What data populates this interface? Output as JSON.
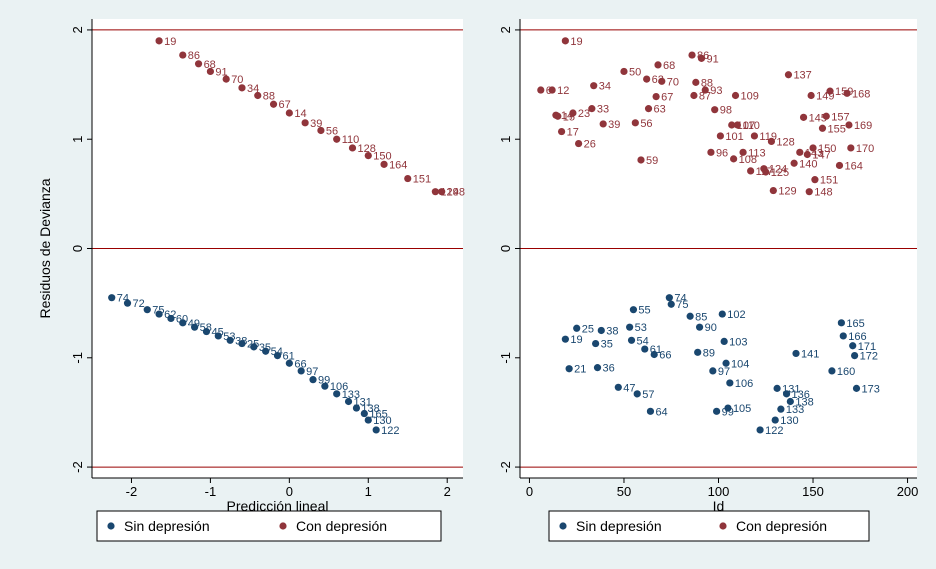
{
  "colors": {
    "sin": "#1a476f",
    "con": "#90353b",
    "refline": "#990000",
    "outer_bg": "#eaf2f3"
  },
  "chart_data": [
    {
      "type": "scatter",
      "xlabel": "Predicción lineal",
      "ylabel": "Residuos de Devianza",
      "xlim": [
        -2.5,
        2.2
      ],
      "ylim": [
        -2.1,
        2.1
      ],
      "xticks": [
        -2,
        -1,
        0,
        1,
        2
      ],
      "xtick_labels": [
        "-2",
        "-1",
        "0",
        "1",
        "2"
      ],
      "yticks": [
        -2,
        -1,
        0,
        1,
        2
      ],
      "ytick_labels": [
        "-2",
        "-1",
        "0",
        "1",
        "2"
      ],
      "ref_lines_y": [
        -2,
        0,
        2
      ],
      "grid": false,
      "legend_position": "bottom",
      "series": [
        {
          "name": "Sin depresión",
          "color_key": "sin",
          "points": [
            {
              "x": -2.25,
              "y": -0.45,
              "label": "74"
            },
            {
              "x": -2.05,
              "y": -0.5,
              "label": "72"
            },
            {
              "x": -1.8,
              "y": -0.56,
              "label": "75"
            },
            {
              "x": -1.65,
              "y": -0.6,
              "label": "62"
            },
            {
              "x": -1.5,
              "y": -0.64,
              "label": "60"
            },
            {
              "x": -1.35,
              "y": -0.68,
              "label": "49"
            },
            {
              "x": -1.2,
              "y": -0.72,
              "label": "58"
            },
            {
              "x": -1.05,
              "y": -0.76,
              "label": "45"
            },
            {
              "x": -0.9,
              "y": -0.8,
              "label": "53"
            },
            {
              "x": -0.75,
              "y": -0.84,
              "label": "38"
            },
            {
              "x": -0.6,
              "y": -0.87,
              "label": "25"
            },
            {
              "x": -0.45,
              "y": -0.9,
              "label": "35"
            },
            {
              "x": -0.3,
              "y": -0.94,
              "label": "54"
            },
            {
              "x": -0.15,
              "y": -0.98,
              "label": "61"
            },
            {
              "x": 0.0,
              "y": -1.05,
              "label": "66"
            },
            {
              "x": 0.15,
              "y": -1.12,
              "label": "97"
            },
            {
              "x": 0.3,
              "y": -1.2,
              "label": "99"
            },
            {
              "x": 0.45,
              "y": -1.26,
              "label": "106"
            },
            {
              "x": 0.6,
              "y": -1.33,
              "label": "133"
            },
            {
              "x": 0.75,
              "y": -1.4,
              "label": "131"
            },
            {
              "x": 0.85,
              "y": -1.46,
              "label": "138"
            },
            {
              "x": 0.95,
              "y": -1.51,
              "label": "165"
            },
            {
              "x": 1.0,
              "y": -1.57,
              "label": "130"
            },
            {
              "x": 1.1,
              "y": -1.66,
              "label": "122"
            }
          ]
        },
        {
          "name": "Con depresión",
          "color_key": "con",
          "points": [
            {
              "x": -1.65,
              "y": 1.9,
              "label": "19"
            },
            {
              "x": -1.35,
              "y": 1.77,
              "label": "86"
            },
            {
              "x": -1.15,
              "y": 1.69,
              "label": "68"
            },
            {
              "x": -1.0,
              "y": 1.62,
              "label": "91"
            },
            {
              "x": -0.8,
              "y": 1.55,
              "label": "70"
            },
            {
              "x": -0.6,
              "y": 1.47,
              "label": "34"
            },
            {
              "x": -0.4,
              "y": 1.4,
              "label": "88"
            },
            {
              "x": -0.2,
              "y": 1.32,
              "label": "67"
            },
            {
              "x": 0.0,
              "y": 1.24,
              "label": "14"
            },
            {
              "x": 0.2,
              "y": 1.15,
              "label": "39"
            },
            {
              "x": 0.4,
              "y": 1.08,
              "label": "56"
            },
            {
              "x": 0.6,
              "y": 1.0,
              "label": "110"
            },
            {
              "x": 0.8,
              "y": 0.92,
              "label": "128"
            },
            {
              "x": 1.0,
              "y": 0.85,
              "label": "150"
            },
            {
              "x": 1.2,
              "y": 0.77,
              "label": "164"
            },
            {
              "x": 1.5,
              "y": 0.64,
              "label": "151"
            },
            {
              "x": 1.85,
              "y": 0.52,
              "label": "129"
            },
            {
              "x": 1.93,
              "y": 0.52,
              "label": "148"
            }
          ]
        }
      ]
    },
    {
      "type": "scatter",
      "xlabel": "Id",
      "ylabel": "",
      "xlim": [
        -5,
        205
      ],
      "ylim": [
        -2.1,
        2.1
      ],
      "xticks": [
        0,
        50,
        100,
        150,
        200
      ],
      "xtick_labels": [
        "0",
        "50",
        "100",
        "150",
        "200"
      ],
      "yticks": [
        -2,
        -1,
        0,
        1,
        2
      ],
      "ytick_labels": [
        "-2",
        "-1",
        "0",
        "1",
        "2"
      ],
      "ref_lines_y": [
        -2,
        0,
        2
      ],
      "grid": false,
      "legend_position": "bottom",
      "series": [
        {
          "name": "Sin depresión",
          "color_key": "sin",
          "points": [
            {
              "x": 25,
              "y": -0.73,
              "label": "25"
            },
            {
              "x": 38,
              "y": -0.75,
              "label": "38"
            },
            {
              "x": 55,
              "y": -0.56,
              "label": "55"
            },
            {
              "x": 53,
              "y": -0.72,
              "label": "53"
            },
            {
              "x": 74,
              "y": -0.45,
              "label": "74"
            },
            {
              "x": 75,
              "y": -0.51,
              "label": "75"
            },
            {
              "x": 85,
              "y": -0.62,
              "label": "85"
            },
            {
              "x": 90,
              "y": -0.72,
              "label": "90"
            },
            {
              "x": 102,
              "y": -0.6,
              "label": "102"
            },
            {
              "x": 103,
              "y": -0.85,
              "label": "103"
            },
            {
              "x": 35,
              "y": -0.87,
              "label": "35"
            },
            {
              "x": 54,
              "y": -0.84,
              "label": "54"
            },
            {
              "x": 61,
              "y": -0.92,
              "label": "61"
            },
            {
              "x": 66,
              "y": -0.97,
              "label": "66"
            },
            {
              "x": 89,
              "y": -0.95,
              "label": "89"
            },
            {
              "x": 97,
              "y": -1.12,
              "label": "97"
            },
            {
              "x": 104,
              "y": -1.05,
              "label": "104"
            },
            {
              "x": 106,
              "y": -1.23,
              "label": "106"
            },
            {
              "x": 36,
              "y": -1.09,
              "label": "36"
            },
            {
              "x": 47,
              "y": -1.27,
              "label": "47"
            },
            {
              "x": 57,
              "y": -1.33,
              "label": "57"
            },
            {
              "x": 64,
              "y": -1.49,
              "label": "64"
            },
            {
              "x": 99,
              "y": -1.49,
              "label": "99"
            },
            {
              "x": 105,
              "y": -1.46,
              "label": "105"
            },
            {
              "x": 131,
              "y": -1.28,
              "label": "131"
            },
            {
              "x": 136,
              "y": -1.33,
              "label": "136"
            },
            {
              "x": 138,
              "y": -1.4,
              "label": "138"
            },
            {
              "x": 133,
              "y": -1.47,
              "label": "133"
            },
            {
              "x": 130,
              "y": -1.57,
              "label": "130"
            },
            {
              "x": 122,
              "y": -1.66,
              "label": "122"
            },
            {
              "x": 141,
              "y": -0.96,
              "label": "141"
            },
            {
              "x": 165,
              "y": -0.68,
              "label": "165"
            },
            {
              "x": 166,
              "y": -0.8,
              "label": "166"
            },
            {
              "x": 171,
              "y": -0.89,
              "label": "171"
            },
            {
              "x": 172,
              "y": -0.98,
              "label": "172"
            },
            {
              "x": 160,
              "y": -1.12,
              "label": "160"
            },
            {
              "x": 173,
              "y": -1.28,
              "label": "173"
            },
            {
              "x": 19,
              "y": -0.83,
              "label": "19"
            },
            {
              "x": 21,
              "y": -1.1,
              "label": "21"
            }
          ]
        },
        {
          "name": "Con depresión",
          "color_key": "con",
          "points": [
            {
              "x": 19,
              "y": 1.9,
              "label": "19"
            },
            {
              "x": 86,
              "y": 1.77,
              "label": "86"
            },
            {
              "x": 91,
              "y": 1.74,
              "label": "91"
            },
            {
              "x": 68,
              "y": 1.68,
              "label": "68"
            },
            {
              "x": 50,
              "y": 1.62,
              "label": "50"
            },
            {
              "x": 62,
              "y": 1.55,
              "label": "62"
            },
            {
              "x": 70,
              "y": 1.53,
              "label": "70"
            },
            {
              "x": 88,
              "y": 1.52,
              "label": "88"
            },
            {
              "x": 137,
              "y": 1.59,
              "label": "137"
            },
            {
              "x": 6,
              "y": 1.45,
              "label": "6"
            },
            {
              "x": 12,
              "y": 1.45,
              "label": "12"
            },
            {
              "x": 34,
              "y": 1.49,
              "label": "34"
            },
            {
              "x": 67,
              "y": 1.39,
              "label": "67"
            },
            {
              "x": 87,
              "y": 1.4,
              "label": "87"
            },
            {
              "x": 93,
              "y": 1.45,
              "label": "93"
            },
            {
              "x": 109,
              "y": 1.4,
              "label": "109"
            },
            {
              "x": 149,
              "y": 1.4,
              "label": "149"
            },
            {
              "x": 159,
              "y": 1.44,
              "label": "159"
            },
            {
              "x": 168,
              "y": 1.42,
              "label": "168"
            },
            {
              "x": 14,
              "y": 1.22,
              "label": "14"
            },
            {
              "x": 15,
              "y": 1.21,
              "label": "15"
            },
            {
              "x": 23,
              "y": 1.24,
              "label": "23"
            },
            {
              "x": 33,
              "y": 1.28,
              "label": "33"
            },
            {
              "x": 63,
              "y": 1.28,
              "label": "63"
            },
            {
              "x": 98,
              "y": 1.27,
              "label": "98"
            },
            {
              "x": 39,
              "y": 1.14,
              "label": "39"
            },
            {
              "x": 56,
              "y": 1.15,
              "label": "56"
            },
            {
              "x": 17,
              "y": 1.07,
              "label": "17"
            },
            {
              "x": 26,
              "y": 0.96,
              "label": "26"
            },
            {
              "x": 59,
              "y": 0.81,
              "label": "59"
            },
            {
              "x": 107,
              "y": 1.13,
              "label": "107"
            },
            {
              "x": 110,
              "y": 1.13,
              "label": "110"
            },
            {
              "x": 101,
              "y": 1.03,
              "label": "101"
            },
            {
              "x": 119,
              "y": 1.03,
              "label": "119"
            },
            {
              "x": 128,
              "y": 0.98,
              "label": "128"
            },
            {
              "x": 145,
              "y": 1.2,
              "label": "145"
            },
            {
              "x": 157,
              "y": 1.21,
              "label": "157"
            },
            {
              "x": 155,
              "y": 1.1,
              "label": "155"
            },
            {
              "x": 169,
              "y": 1.13,
              "label": "169"
            },
            {
              "x": 96,
              "y": 0.88,
              "label": "96"
            },
            {
              "x": 113,
              "y": 0.88,
              "label": "113"
            },
            {
              "x": 108,
              "y": 0.82,
              "label": "108"
            },
            {
              "x": 143,
              "y": 0.88,
              "label": "143"
            },
            {
              "x": 150,
              "y": 0.92,
              "label": "150"
            },
            {
              "x": 147,
              "y": 0.86,
              "label": "147"
            },
            {
              "x": 170,
              "y": 0.92,
              "label": "170"
            },
            {
              "x": 140,
              "y": 0.78,
              "label": "140"
            },
            {
              "x": 164,
              "y": 0.76,
              "label": "164"
            },
            {
              "x": 117,
              "y": 0.71,
              "label": "117"
            },
            {
              "x": 124,
              "y": 0.73,
              "label": "124"
            },
            {
              "x": 125,
              "y": 0.7,
              "label": "125"
            },
            {
              "x": 151,
              "y": 0.63,
              "label": "151"
            },
            {
              "x": 129,
              "y": 0.53,
              "label": "129"
            },
            {
              "x": 148,
              "y": 0.52,
              "label": "148"
            }
          ]
        }
      ]
    }
  ]
}
